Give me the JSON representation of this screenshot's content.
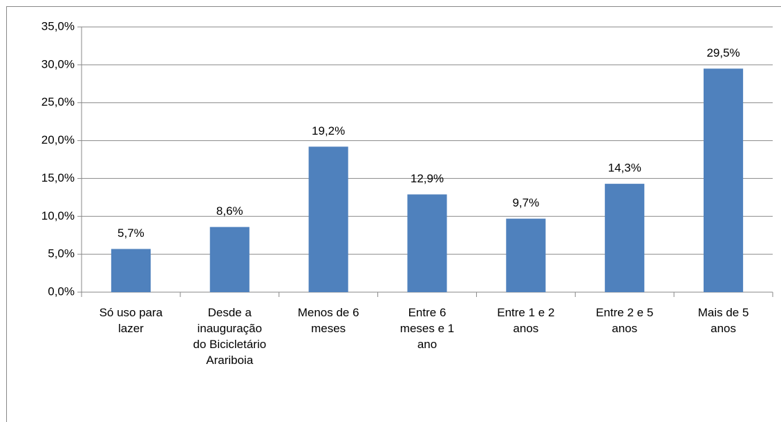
{
  "chart_data": {
    "type": "bar",
    "categories": [
      "Só uso para lazer",
      "Desde a inauguração do Bicicletário Arariboia",
      "Menos de 6 meses",
      "Entre 6 meses e 1 ano",
      "Entre 1 e 2 anos",
      "Entre 2 e 5 anos",
      "Mais de 5 anos"
    ],
    "values": [
      5.7,
      8.6,
      19.2,
      12.9,
      9.7,
      14.3,
      29.5
    ],
    "value_labels": [
      "5,7%",
      "8,6%",
      "19,2%",
      "12,9%",
      "9,7%",
      "14,3%",
      "29,5%"
    ],
    "color": "#4f81bd",
    "ylim": [
      0,
      35
    ],
    "yticks": [
      {
        "value": 0,
        "label": "0,0%"
      },
      {
        "value": 5,
        "label": "5,0%"
      },
      {
        "value": 10,
        "label": "10,0%"
      },
      {
        "value": 15,
        "label": "15,0%"
      },
      {
        "value": 20,
        "label": "20,0%"
      },
      {
        "value": 25,
        "label": "25,0%"
      },
      {
        "value": 30,
        "label": "30,0%"
      },
      {
        "value": 35,
        "label": "35,0%"
      }
    ],
    "grid": true
  }
}
